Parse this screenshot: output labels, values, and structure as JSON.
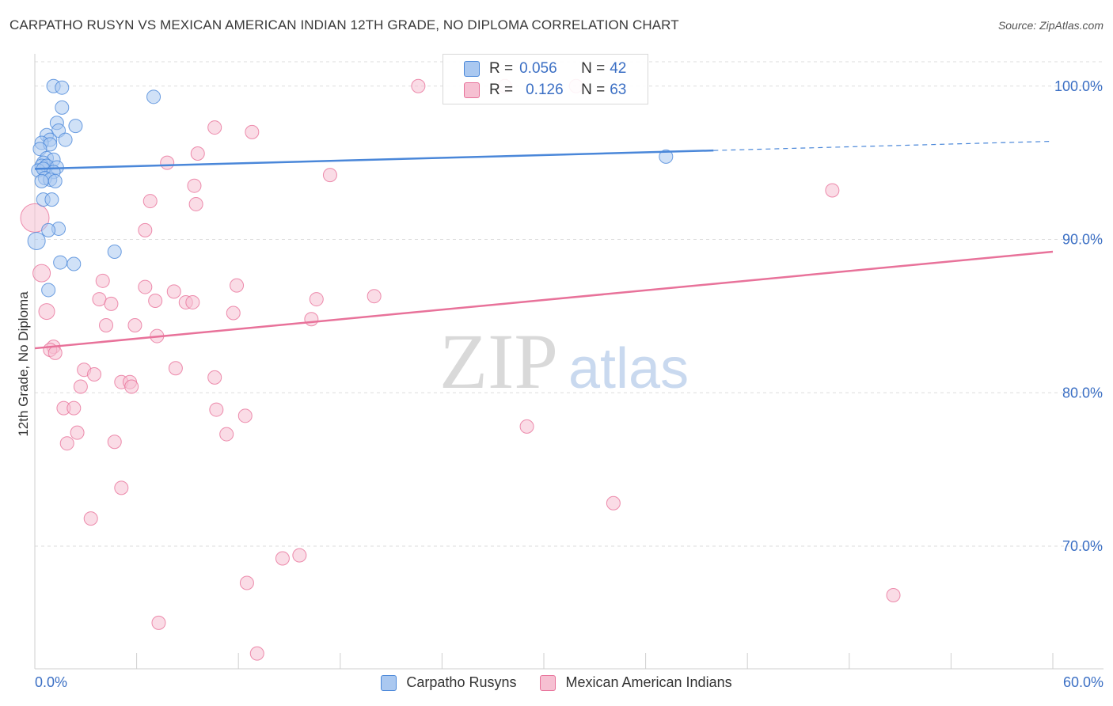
{
  "title": "CARPATHO RUSYN VS MEXICAN AMERICAN INDIAN 12TH GRADE, NO DIPLOMA CORRELATION CHART",
  "source": "Source: ZipAtlas.com",
  "watermark": {
    "zip": "ZIP",
    "atlas": "atlas"
  },
  "legend": {
    "rows": [
      {
        "r_label": "R =",
        "r_value": "0.056",
        "n_label": "N =",
        "n_value": "42"
      },
      {
        "r_label": "R =",
        "r_value": "0.126",
        "n_label": "N =",
        "n_value": "63"
      }
    ]
  },
  "bottom_legend": [
    "Carpatho Rusyns",
    "Mexican American Indians"
  ],
  "x_axis": {
    "min_label": "0.0%",
    "max_label": "60.0%"
  },
  "colors": {
    "blue": "#4a87d9",
    "blue_fill": "#aac8f0",
    "pink": "#e8729a",
    "pink_fill": "#f6c0d2",
    "axis_label": "#3b6fc4",
    "grid": "#dedede"
  },
  "chart_data": {
    "type": "scatter",
    "ylabel": "12th Grade, No Diploma",
    "xlim": [
      0,
      60
    ],
    "ylim": [
      62,
      102
    ],
    "y_ticks": [
      {
        "value": 100,
        "label": "100.0%"
      },
      {
        "value": 90,
        "label": "90.0%"
      },
      {
        "value": 80,
        "label": "80.0%"
      },
      {
        "value": 70,
        "label": "70.0%"
      }
    ],
    "grid": true,
    "series": [
      {
        "name": "Carpatho Rusyns",
        "color": "#4a87d9",
        "r": 0.056,
        "n": 42,
        "trend": {
          "x": [
            0,
            40
          ],
          "y": [
            94.6,
            95.8
          ],
          "dashed_to": [
            60,
            96.4
          ]
        },
        "points": [
          [
            1.1,
            100.0
          ],
          [
            1.6,
            99.9
          ],
          [
            7.0,
            99.3
          ],
          [
            1.6,
            98.6
          ],
          [
            1.3,
            97.6
          ],
          [
            2.4,
            97.4
          ],
          [
            1.4,
            97.1
          ],
          [
            0.7,
            96.8
          ],
          [
            0.9,
            96.5
          ],
          [
            1.8,
            96.5
          ],
          [
            0.4,
            96.3
          ],
          [
            0.9,
            96.2
          ],
          [
            0.3,
            95.9
          ],
          [
            0.7,
            95.3
          ],
          [
            1.1,
            95.2
          ],
          [
            0.5,
            95.0
          ],
          [
            0.4,
            94.8
          ],
          [
            0.7,
            94.8
          ],
          [
            1.3,
            94.7
          ],
          [
            0.2,
            94.5
          ],
          [
            0.5,
            94.6
          ],
          [
            1.1,
            94.4
          ],
          [
            0.6,
            94.0
          ],
          [
            0.9,
            93.9
          ],
          [
            1.2,
            93.8
          ],
          [
            0.4,
            93.8
          ],
          [
            0.5,
            92.6
          ],
          [
            1.0,
            92.6
          ],
          [
            1.4,
            90.7
          ],
          [
            0.8,
            90.6
          ],
          [
            0.1,
            89.9
          ],
          [
            4.7,
            89.2
          ],
          [
            1.5,
            88.5
          ],
          [
            2.3,
            88.4
          ],
          [
            0.8,
            86.7
          ],
          [
            37.2,
            95.4
          ]
        ]
      },
      {
        "name": "Mexican American Indians",
        "color": "#e8729a",
        "r": 0.126,
        "n": 63,
        "trend": {
          "x": [
            0,
            60
          ],
          "y": [
            82.9,
            89.2
          ]
        },
        "points": [
          [
            22.6,
            100.0
          ],
          [
            27.7,
            100.0
          ],
          [
            31.9,
            100.0
          ],
          [
            10.6,
            97.3
          ],
          [
            12.8,
            97.0
          ],
          [
            9.6,
            95.6
          ],
          [
            7.8,
            95.0
          ],
          [
            17.4,
            94.2
          ],
          [
            47.0,
            93.2
          ],
          [
            9.4,
            93.5
          ],
          [
            6.8,
            92.5
          ],
          [
            9.5,
            92.3
          ],
          [
            0.0,
            91.4
          ],
          [
            6.5,
            90.6
          ],
          [
            0.4,
            87.8
          ],
          [
            4.0,
            87.3
          ],
          [
            6.5,
            86.9
          ],
          [
            11.9,
            87.0
          ],
          [
            8.2,
            86.6
          ],
          [
            20.0,
            86.3
          ],
          [
            3.8,
            86.1
          ],
          [
            7.1,
            86.0
          ],
          [
            16.6,
            86.1
          ],
          [
            4.5,
            85.8
          ],
          [
            8.9,
            85.9
          ],
          [
            9.3,
            85.9
          ],
          [
            0.7,
            85.3
          ],
          [
            11.7,
            85.2
          ],
          [
            16.3,
            84.8
          ],
          [
            4.2,
            84.4
          ],
          [
            5.9,
            84.4
          ],
          [
            7.2,
            83.7
          ],
          [
            1.1,
            83.0
          ],
          [
            0.9,
            82.8
          ],
          [
            1.2,
            82.6
          ],
          [
            2.9,
            81.5
          ],
          [
            8.3,
            81.6
          ],
          [
            3.5,
            81.2
          ],
          [
            10.6,
            81.0
          ],
          [
            5.1,
            80.7
          ],
          [
            5.6,
            80.7
          ],
          [
            5.7,
            80.4
          ],
          [
            2.7,
            80.4
          ],
          [
            1.7,
            79.0
          ],
          [
            2.3,
            79.0
          ],
          [
            10.7,
            78.9
          ],
          [
            12.4,
            78.5
          ],
          [
            2.5,
            77.4
          ],
          [
            11.3,
            77.3
          ],
          [
            29.0,
            77.8
          ],
          [
            1.9,
            76.7
          ],
          [
            4.7,
            76.8
          ],
          [
            5.1,
            73.8
          ],
          [
            34.1,
            72.8
          ],
          [
            3.3,
            71.8
          ],
          [
            14.6,
            69.2
          ],
          [
            15.6,
            69.4
          ],
          [
            12.5,
            67.6
          ],
          [
            50.6,
            66.8
          ],
          [
            7.3,
            65.0
          ],
          [
            13.1,
            63.0
          ]
        ]
      }
    ]
  }
}
